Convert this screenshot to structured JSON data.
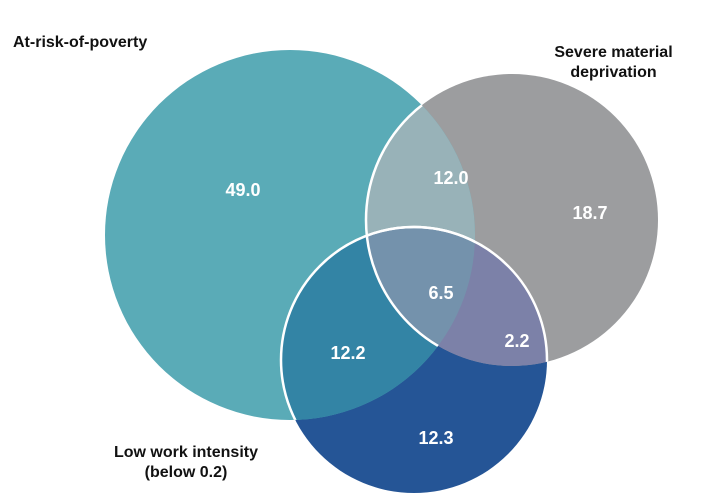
{
  "sets": {
    "poverty": {
      "label": "At-risk-of-poverty",
      "color": "#5aabb7"
    },
    "deprivation": {
      "label_line1": "Severe material",
      "label_line2": "deprivation",
      "color": "#9c9d9f"
    },
    "low_work": {
      "label_line1": "Low work intensity",
      "label_line2": "(below 0.2)",
      "color": "#255596"
    }
  },
  "overlap_colors": {
    "poverty_deprivation": "#98b2b8",
    "poverty_lowwork": "#3384a5",
    "deprivation_lowwork": "#7c81a8",
    "all_three": "#7492ac"
  },
  "regions": {
    "poverty_only": "49.0",
    "deprivation_only": "18.7",
    "low_work_only": "12.3",
    "poverty_deprivation": "12.0",
    "poverty_lowwork": "12.2",
    "deprivation_lowwork": "2.2",
    "all_three": "6.5"
  }
}
